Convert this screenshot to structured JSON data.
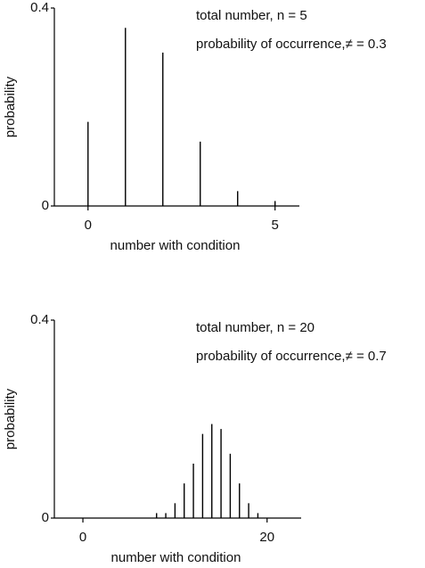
{
  "chart_data": [
    {
      "type": "stem",
      "annotations": [
        "total number, n = 5",
        "probability of occurrence,≠ = 0.3"
      ],
      "x_label": "number with condition",
      "y_label": "probability",
      "x": [
        0,
        1,
        2,
        3,
        4,
        5
      ],
      "values": [
        0.17,
        0.36,
        0.31,
        0.13,
        0.03,
        0.01
      ],
      "color": "#000000",
      "xlim": [
        -0.9,
        5.65
      ],
      "xticks": [
        0,
        5
      ],
      "ylim": [
        0,
        0.4
      ],
      "yticks": [
        0,
        0.4
      ]
    },
    {
      "type": "stem",
      "annotations": [
        "total number, n = 20",
        "probability of occurrence,≠ = 0.7"
      ],
      "x_label": "number with condition",
      "y_label": "probability",
      "x": [
        0,
        1,
        2,
        3,
        4,
        5,
        6,
        7,
        8,
        9,
        10,
        11,
        12,
        13,
        14,
        15,
        16,
        17,
        18,
        19,
        20
      ],
      "values": [
        0,
        0,
        0,
        0,
        0,
        0,
        0,
        0,
        0.01,
        0.01,
        0.03,
        0.07,
        0.11,
        0.17,
        0.19,
        0.18,
        0.13,
        0.07,
        0.03,
        0.01,
        0
      ],
      "color": "#000000",
      "xlim": [
        -3.1,
        23.7
      ],
      "xticks": [
        0,
        20
      ],
      "ylim": [
        0,
        0.4
      ],
      "yticks": [
        0,
        0.4
      ]
    }
  ]
}
